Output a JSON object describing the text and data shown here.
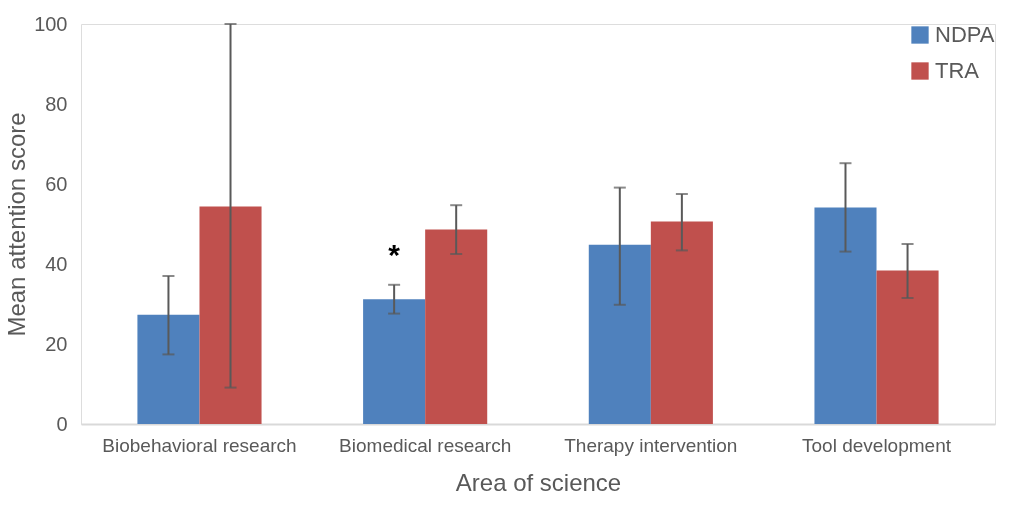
{
  "chart_data": {
    "type": "bar",
    "categories": [
      "Biobehavioral research",
      "Biomedical research",
      "Therapy intervention",
      "Tool development"
    ],
    "series": [
      {
        "name": "NDPA",
        "color": "#4f81bd",
        "values": [
          27.3,
          31.2,
          44.8,
          54.1
        ],
        "errors": [
          [
            17.4,
            37.0
          ],
          [
            27.6,
            34.8
          ],
          [
            29.8,
            59.1
          ],
          [
            43.1,
            65.2
          ]
        ]
      },
      {
        "name": "TRA",
        "color": "#c0504d",
        "values": [
          54.4,
          48.6,
          50.6,
          38.4
        ],
        "errors": [
          [
            9.1,
            100
          ],
          [
            42.5,
            54.7
          ],
          [
            43.4,
            57.5
          ],
          [
            31.5,
            45.0
          ]
        ]
      }
    ],
    "xlabel": "Area of science",
    "ylabel": "Mean attention score",
    "ylim": [
      0,
      100
    ],
    "yticks": [
      0,
      20,
      40,
      60,
      80,
      100
    ],
    "annotations": [
      {
        "text": "*",
        "x": "Biomedical research",
        "y": 42
      }
    ],
    "grid": false,
    "legend": "top right"
  }
}
